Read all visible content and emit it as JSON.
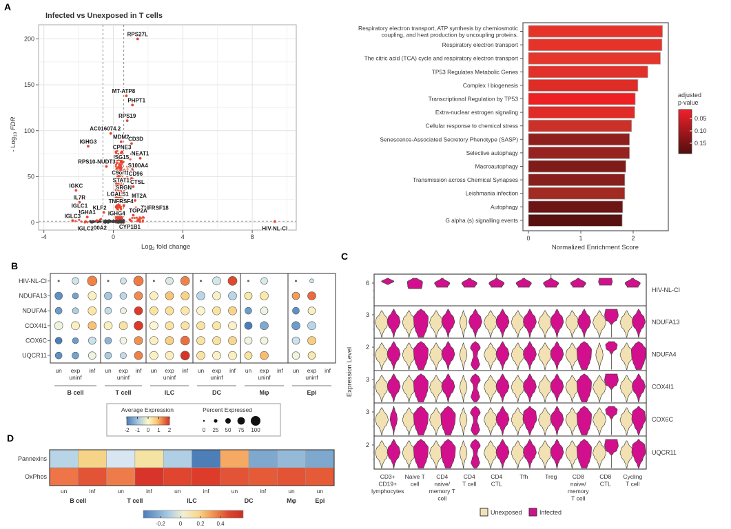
{
  "panel_labels": {
    "A": "A",
    "B": "B",
    "C": "C",
    "D": "D"
  },
  "chart_data": [
    {
      "id": "volcano",
      "type": "scatter",
      "title": "Infected vs Unexposed in T cells",
      "xlabel": {
        "pre": "Log",
        "sub": "2",
        "post": " fold change"
      },
      "ylabel": {
        "pre": "- Log",
        "sub": "10",
        "post": " FDR"
      },
      "xticks": [
        -4,
        0,
        4,
        8
      ],
      "yticks": [
        0,
        50,
        100,
        150,
        200
      ],
      "xlim": [
        -4.4,
        10.5
      ],
      "ylim": [
        -8,
        215
      ],
      "fc_thresholds": [
        -0.6,
        0.6
      ],
      "fdr_threshold_y": 1.3,
      "sig_color": "#e8432e",
      "ns_color": "#3f3f3f",
      "labeled_genes": [
        {
          "g": "RPS27L",
          "x": 1.4,
          "y": 200
        },
        {
          "g": "MT-ATP8",
          "x": 0.75,
          "y": 138,
          "dx": -4
        },
        {
          "g": "PHPT1",
          "x": 1.1,
          "y": 128,
          "dx": 6
        },
        {
          "g": "RPS19",
          "x": 0.8,
          "y": 111
        },
        {
          "g": "AC016074.2",
          "x": -0.15,
          "y": 97,
          "dx": -8
        },
        {
          "g": "IGHG3",
          "x": -1.45,
          "y": 83
        },
        {
          "g": "MDM2",
          "x": 0.45,
          "y": 88
        },
        {
          "g": "CD3D",
          "x": 1.05,
          "y": 86,
          "dx": 6
        },
        {
          "g": "CPNE3",
          "x": 0.5,
          "y": 77
        },
        {
          "g": "ISG15",
          "x": 0.45,
          "y": 66
        },
        {
          "g": "NEAT1",
          "x": 1.55,
          "y": 70
        },
        {
          "g": "RPS10-NUDT3",
          "x": -0.4,
          "y": 61,
          "dx": -14
        },
        {
          "g": "S100A4",
          "x": 1.1,
          "y": 57,
          "dx": 8
        },
        {
          "g": "C9orf16",
          "x": 0.5,
          "y": 49
        },
        {
          "g": "CD96",
          "x": 1.05,
          "y": 48,
          "dx": 6
        },
        {
          "g": "STAT1",
          "x": 0.45,
          "y": 41
        },
        {
          "g": "CTSL",
          "x": 1.15,
          "y": 39,
          "dx": 6
        },
        {
          "g": "SRGN",
          "x": 0.6,
          "y": 33
        },
        {
          "g": "IGKC",
          "x": -2.15,
          "y": 35
        },
        {
          "g": "LGALS1",
          "x": 0.5,
          "y": 26,
          "dx": -6
        },
        {
          "g": "MT2A",
          "x": 1.25,
          "y": 24,
          "dx": 6
        },
        {
          "g": "IL7R",
          "x": -1.95,
          "y": 22
        },
        {
          "g": "TNFRSF4",
          "x": 0.6,
          "y": 18,
          "dx": -4
        },
        {
          "g": "TNFRSF18",
          "x": 1.3,
          "y": 16,
          "a": "start",
          "dx": 7,
          "dy": 3
        },
        {
          "g": "IGLC1",
          "x": -1.95,
          "y": 13
        },
        {
          "g": "KLF2",
          "x": -0.55,
          "y": 11,
          "dx": -6
        },
        {
          "g": "IGHA1",
          "x": -1.5,
          "y": 6
        },
        {
          "g": "IGHG4",
          "x": 0.35,
          "y": 5,
          "dx": -4
        },
        {
          "g": "TOP2A",
          "x": 1.15,
          "y": 8,
          "dx": 7
        },
        {
          "g": "IGLC3",
          "x": -2.35,
          "y": 2
        },
        {
          "g": "S100A2",
          "x": -0.95,
          "y": 2,
          "dy": 13
        },
        {
          "g": "CYP1B1",
          "x": 0.95,
          "y": 3,
          "dy": 13
        },
        {
          "g": "IGLC2",
          "x": -1.6,
          "y": 1,
          "dy": 13
        },
        {
          "g": "HIV-NL-CI",
          "x": 9.3,
          "y": 1,
          "dy": 13
        }
      ]
    },
    {
      "id": "enrichment_bars",
      "type": "bar",
      "orientation": "horizontal",
      "xlabel": "Normalized Enrichment Score",
      "xticks": [
        0,
        1,
        2
      ],
      "legend": {
        "title_lines": [
          "adjusted",
          "p-value"
        ],
        "ticks": [
          "0.05",
          "0.10",
          "0.15"
        ],
        "top_color": "#f0202a",
        "bottom_color": "#530e0e"
      },
      "categories": [
        [
          "Respiratory electron transport, ATP synthesis by chemiosmotic",
          "coupling, and heat production by uncoupling proteins."
        ],
        [
          "Respiratory electron transport"
        ],
        [
          "The citric acid (TCA) cycle and respiratory electron transport"
        ],
        [
          "TP53 Regulates Metabolic Genes"
        ],
        [
          "Complex I biogenesis"
        ],
        [
          "Transcriptional Regulation by TP53"
        ],
        [
          "Extra-nuclear estrogen signaling"
        ],
        [
          "Cellular response to chemical stress"
        ],
        [
          "Senescence-Associated Secretory Phenotype (SASP)"
        ],
        [
          "Selective autophagy"
        ],
        [
          "Macroautophagy"
        ],
        [
          "Transmission across Chemical Synapses"
        ],
        [
          "Leishmania infection"
        ],
        [
          "Autophagy"
        ],
        [
          "G alpha (s) signalling events"
        ]
      ],
      "values": [
        2.56,
        2.55,
        2.52,
        2.28,
        2.09,
        2.04,
        2.03,
        1.97,
        1.93,
        1.93,
        1.86,
        1.84,
        1.84,
        1.8,
        1.79
      ],
      "colors": [
        "#e6332a",
        "#e6332a",
        "#e5362c",
        "#e2302a",
        "#de2d26",
        "#ed2024",
        "#e02b26",
        "#cb3129",
        "#8f1f1d",
        "#96231f",
        "#7f1b19",
        "#881f1c",
        "#a12a23",
        "#6d1515",
        "#591110"
      ]
    },
    {
      "id": "dotplot",
      "type": "dotplot",
      "genes": [
        "HIV-NL-CI",
        "NDUFA13",
        "NDUFA4",
        "COX4I1",
        "COX6C",
        "UQCR11"
      ],
      "groups": [
        "B cell",
        "T cell",
        "ILC",
        "DC",
        "Mφ",
        "Epi"
      ],
      "conditions": [
        "un",
        "exp",
        "inf"
      ],
      "condition_sub": "uninf",
      "legend": {
        "avg_title": "Average Expression",
        "avg_ticks": [
          "-2",
          "-1",
          "0",
          "1",
          "2"
        ],
        "pct_title": "Percent Expressed",
        "pct_ticks": [
          "0",
          "25",
          "50",
          "75",
          "100"
        ]
      },
      "cells": {
        "HIV-NL-CI": [
          "#666666:1.2",
          "#cfe3ee:5",
          "#f08147:7",
          "#666666:1.2",
          "#cfe3ee:4.5",
          "#ee7a45:7",
          "#666666:1.2",
          "#d9eae2:5.5",
          "#f08147:6.5",
          "#666666:1.2",
          "#d4e6ec:6",
          "#e2472e:6.5",
          "#666666:1.2",
          "#d8e9ea:5",
          null,
          "#666666:1.2",
          "#cfe3ee:3",
          null
        ],
        "NDUFA13": [
          "#5e92c6:5.5",
          "#74a3ce:4.5",
          "#fbf0c2:6",
          "#a3c9de:5.5",
          "#bbd8e8:5",
          "#f08a52:6",
          "#fbefc0:6",
          "#f8c478:6",
          "#f8d285:6",
          "#b8d6e7:6",
          "#f8efc8:6",
          "#b8d6e7:6",
          "#fae9a8:5.5",
          "#fae9a8:6",
          null,
          "#f29d5b:5.5",
          "#ea6a41:6",
          null
        ],
        "NDUFA4": [
          "#6c9ccb:5",
          "#aecfe2:4.5",
          "#fbe8a5:6",
          "#c3dcea:5",
          "#e9f2df:4.5",
          "#de3a2a:6",
          "#fae49e:6",
          "#fae09a:6",
          "#fbe8a5:6",
          "#fcf2cc:6",
          "#fae3a0:6",
          "#f9d488:6",
          "#6c9ccb:5",
          "#ecf4e4:5.5",
          null,
          "#5e92c6:5",
          "#fbf0c2:5.5",
          null
        ],
        "COX4I1": [
          "#ecf3dc:6",
          "#fbf0c2:6",
          "#f8c377:6",
          "#fbefc0:6",
          "#fae3a0:6",
          "#dd3928:6.5",
          "#fdf5d2:6",
          "#fae3a0:6",
          "#fae3a0:6",
          "#fae3a0:6",
          "#fbe8a5:6",
          "#fcf0c6:6",
          "#4a7db9:5.5",
          "#7fa9d1:6",
          null,
          "#6c9ccb:6",
          "#b8d6e7:6",
          null
        ],
        "COX6C": [
          "#4a7db9:5",
          "#6c9ccb:4.5",
          "#c9e0ed:5.5",
          "#8fb4d6:5",
          "#eef5e2:5",
          "#f2914f:6",
          "#fbefc0:6",
          "#f9cf81:6",
          "#ec6f41:6.5",
          "#fae3a0:6",
          "#fae3a0:6",
          "#f9d88d:6",
          "#f0f5e0:5.5",
          "#f2f5de:5.5",
          null,
          "#cce2ee:5.5",
          "#f8cd7f:6",
          null
        ],
        "UQCR11": [
          "#5e92c6:5",
          "#74a3ce:5",
          "#edf4e0:5.5",
          "#a9cce0:5",
          "#c3dcea:4.5",
          "#f08147:6",
          "#fbf0c2:6",
          "#fbeebb:6",
          "#d93327:6.5",
          "#fae3a0:6",
          "#fcf0c6:6",
          "#fbefc0:6",
          "#fae49e:5.5",
          "#f6bc6f:6",
          null,
          "#eff5de:5.5",
          "#fae8ac:5.5",
          null
        ]
      }
    },
    {
      "id": "violin",
      "type": "violin",
      "ylabel": "Expression Level",
      "legend": [
        {
          "label": "Unexposed",
          "color": "#f2e2b3"
        },
        {
          "label": "Infected",
          "color": "#d2108e"
        }
      ],
      "categories": [
        [
          "CD3+",
          "CD19+",
          "lymphocytes"
        ],
        [
          "Naive T",
          "cell"
        ],
        [
          "CD4",
          "naive/",
          "memory T",
          "cell"
        ],
        [
          "CD4",
          "T cell"
        ],
        [
          "CD4",
          "CTL"
        ],
        [
          "Tfh"
        ],
        [
          "Treg"
        ],
        [
          "CD8",
          "naive/",
          "memory",
          "T cell"
        ],
        [
          "CD8",
          "CTL"
        ],
        [
          "Cycling",
          "T cell"
        ]
      ],
      "rows": [
        {
          "gene": "HIV-NL-CI",
          "tick": "6",
          "hiv": true,
          "hcells": [
            "e",
            "f",
            "t",
            "t",
            "tS",
            "t",
            "tS",
            "t",
            "r",
            "t"
          ]
        },
        {
          "gene": "NDUFA13",
          "tick": "3",
          "cells": [
            "n,n",
            "n,w",
            "n,n",
            "s,n",
            "n,n",
            "n,n",
            "n,n",
            "n,n",
            "n,r",
            "n,n"
          ]
        },
        {
          "gene": "NDUFA4",
          "tick": "2",
          "cells": [
            "n,n",
            "n,w",
            "n,n",
            "s,h",
            "n,n",
            "n,n",
            "n,n",
            "n,w",
            "s,b",
            "n,w"
          ]
        },
        {
          "gene": "COX4I1",
          "tick": "3",
          "cells": [
            "n,n",
            "n,w",
            "n,n",
            "s,h",
            "n,n",
            "n,n",
            "n,n",
            "n,w",
            "n,r",
            "n,n"
          ]
        },
        {
          "gene": "COX6C",
          "tick": "3",
          "cells": [
            "n,s",
            "n,w",
            "n,w",
            "s,h",
            "n,n",
            "n,o",
            "n,n",
            "n,w",
            "n,b",
            "n,o"
          ]
        },
        {
          "gene": "UQCR11",
          "tick": "2",
          "cells": [
            "n,n",
            "n,w",
            "n,w",
            "s,h",
            "n,n",
            "n,n",
            "n,n",
            "n,w",
            "n,r",
            "n,o"
          ]
        }
      ]
    },
    {
      "id": "heatmap",
      "type": "heatmap",
      "rows": [
        "Pannexins",
        "OxPhos"
      ],
      "col_conditions": [
        "un",
        "inf",
        "un",
        "inf",
        "un",
        "inf",
        "un",
        "inf",
        "un",
        "un"
      ],
      "col_groups": [
        {
          "name": "B cell",
          "span": [
            0,
            1
          ]
        },
        {
          "name": "T cell",
          "span": [
            2,
            3
          ]
        },
        {
          "name": "ILC",
          "span": [
            4,
            5
          ]
        },
        {
          "name": "DC",
          "span": [
            6,
            7
          ]
        },
        {
          "name": "Mφ",
          "span": [
            8,
            8
          ]
        },
        {
          "name": "Epi",
          "span": [
            9,
            9
          ]
        }
      ],
      "values": [
        [
          -0.08,
          0.15,
          -0.04,
          0.1,
          -0.1,
          -0.28,
          0.2,
          -0.17,
          -0.13,
          -0.17
        ],
        [
          0.3,
          0.42,
          0.28,
          0.48,
          0.45,
          0.46,
          0.42,
          0.4,
          0.42,
          0.4
        ]
      ],
      "cell_colors": [
        [
          "#b8d4e7",
          "#f5d488",
          "#d8e6f1",
          "#f4e3a2",
          "#b0cfe4",
          "#4d7eb8",
          "#f5a963",
          "#7fa8ce",
          "#94bad8",
          "#7fa8ce"
        ],
        [
          "#ed7547",
          "#e35335",
          "#ee7c4b",
          "#d93429",
          "#e0452f",
          "#dd3c2b",
          "#e35335",
          "#e55b38",
          "#e35335",
          "#e55b38"
        ]
      ],
      "colorbar_ticks": [
        "-0.2",
        "0",
        "0.2",
        "0.4"
      ]
    }
  ]
}
